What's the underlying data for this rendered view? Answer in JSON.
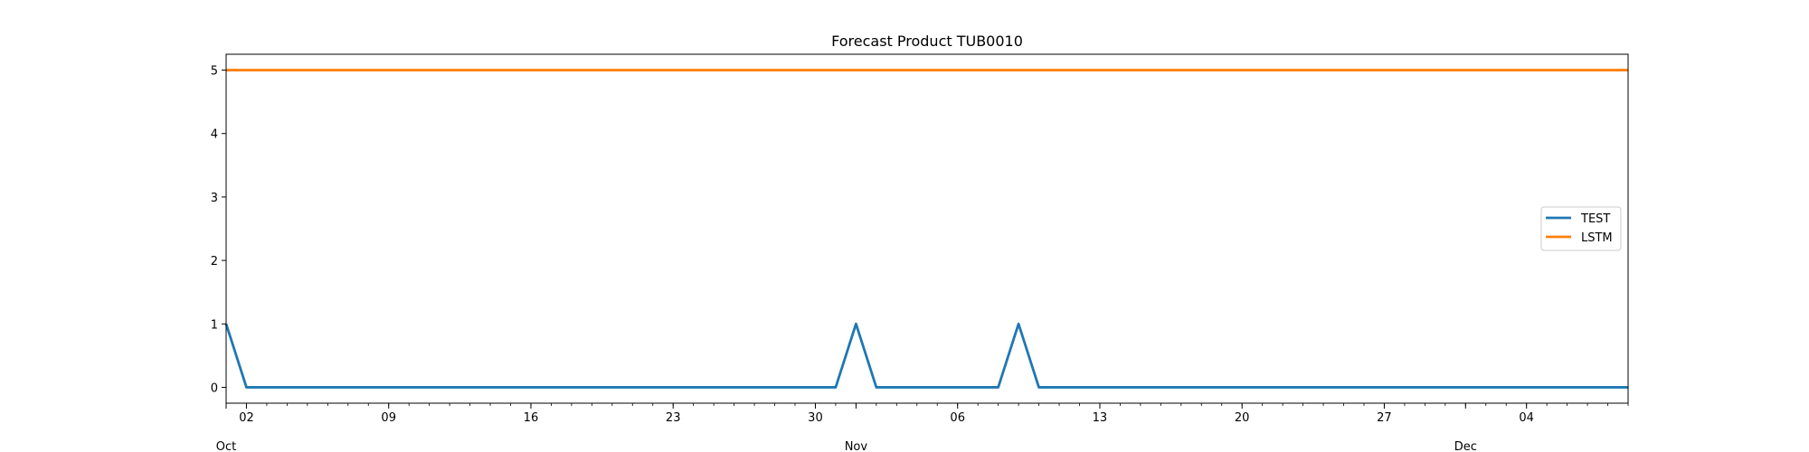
{
  "chart_data": {
    "type": "line",
    "title": "Forecast Product TUB0010",
    "xlabel": "",
    "ylabel": "",
    "x_axis": {
      "scale": "date",
      "range": [
        "2023-10-01",
        "2023-12-09"
      ],
      "major_ticks": [
        {
          "date": "2023-10-02",
          "label": "02"
        },
        {
          "date": "2023-10-09",
          "label": "09"
        },
        {
          "date": "2023-10-16",
          "label": "16"
        },
        {
          "date": "2023-10-23",
          "label": "23"
        },
        {
          "date": "2023-10-30",
          "label": "30"
        },
        {
          "date": "2023-11-06",
          "label": "06"
        },
        {
          "date": "2023-11-13",
          "label": "13"
        },
        {
          "date": "2023-11-20",
          "label": "20"
        },
        {
          "date": "2023-11-27",
          "label": "27"
        },
        {
          "date": "2023-12-04",
          "label": "04"
        }
      ],
      "month_labels": [
        {
          "date": "2023-10-01",
          "label": "Oct"
        },
        {
          "date": "2023-11-01",
          "label": "Nov"
        },
        {
          "date": "2023-12-01",
          "label": "Dec"
        }
      ],
      "minor_ticks": "daily"
    },
    "ylim": [
      -0.25,
      5.25
    ],
    "yticks": [
      0,
      1,
      2,
      3,
      4,
      5
    ],
    "grid": false,
    "legend": {
      "position": "center-right",
      "entries": [
        "TEST",
        "LSTM"
      ]
    },
    "series": [
      {
        "name": "TEST",
        "color": "#1f77b4",
        "points": [
          {
            "x": "2023-10-01",
            "y": 1
          },
          {
            "x": "2023-10-02",
            "y": 0
          },
          {
            "x": "2023-10-31",
            "y": 0
          },
          {
            "x": "2023-11-01",
            "y": 1
          },
          {
            "x": "2023-11-02",
            "y": 0
          },
          {
            "x": "2023-11-08",
            "y": 0
          },
          {
            "x": "2023-11-09",
            "y": 1
          },
          {
            "x": "2023-11-10",
            "y": 0
          },
          {
            "x": "2023-12-09",
            "y": 0
          }
        ]
      },
      {
        "name": "LSTM",
        "color": "#ff7f0e",
        "points": [
          {
            "x": "2023-10-01",
            "y": 5
          },
          {
            "x": "2023-12-09",
            "y": 5
          }
        ]
      }
    ]
  }
}
